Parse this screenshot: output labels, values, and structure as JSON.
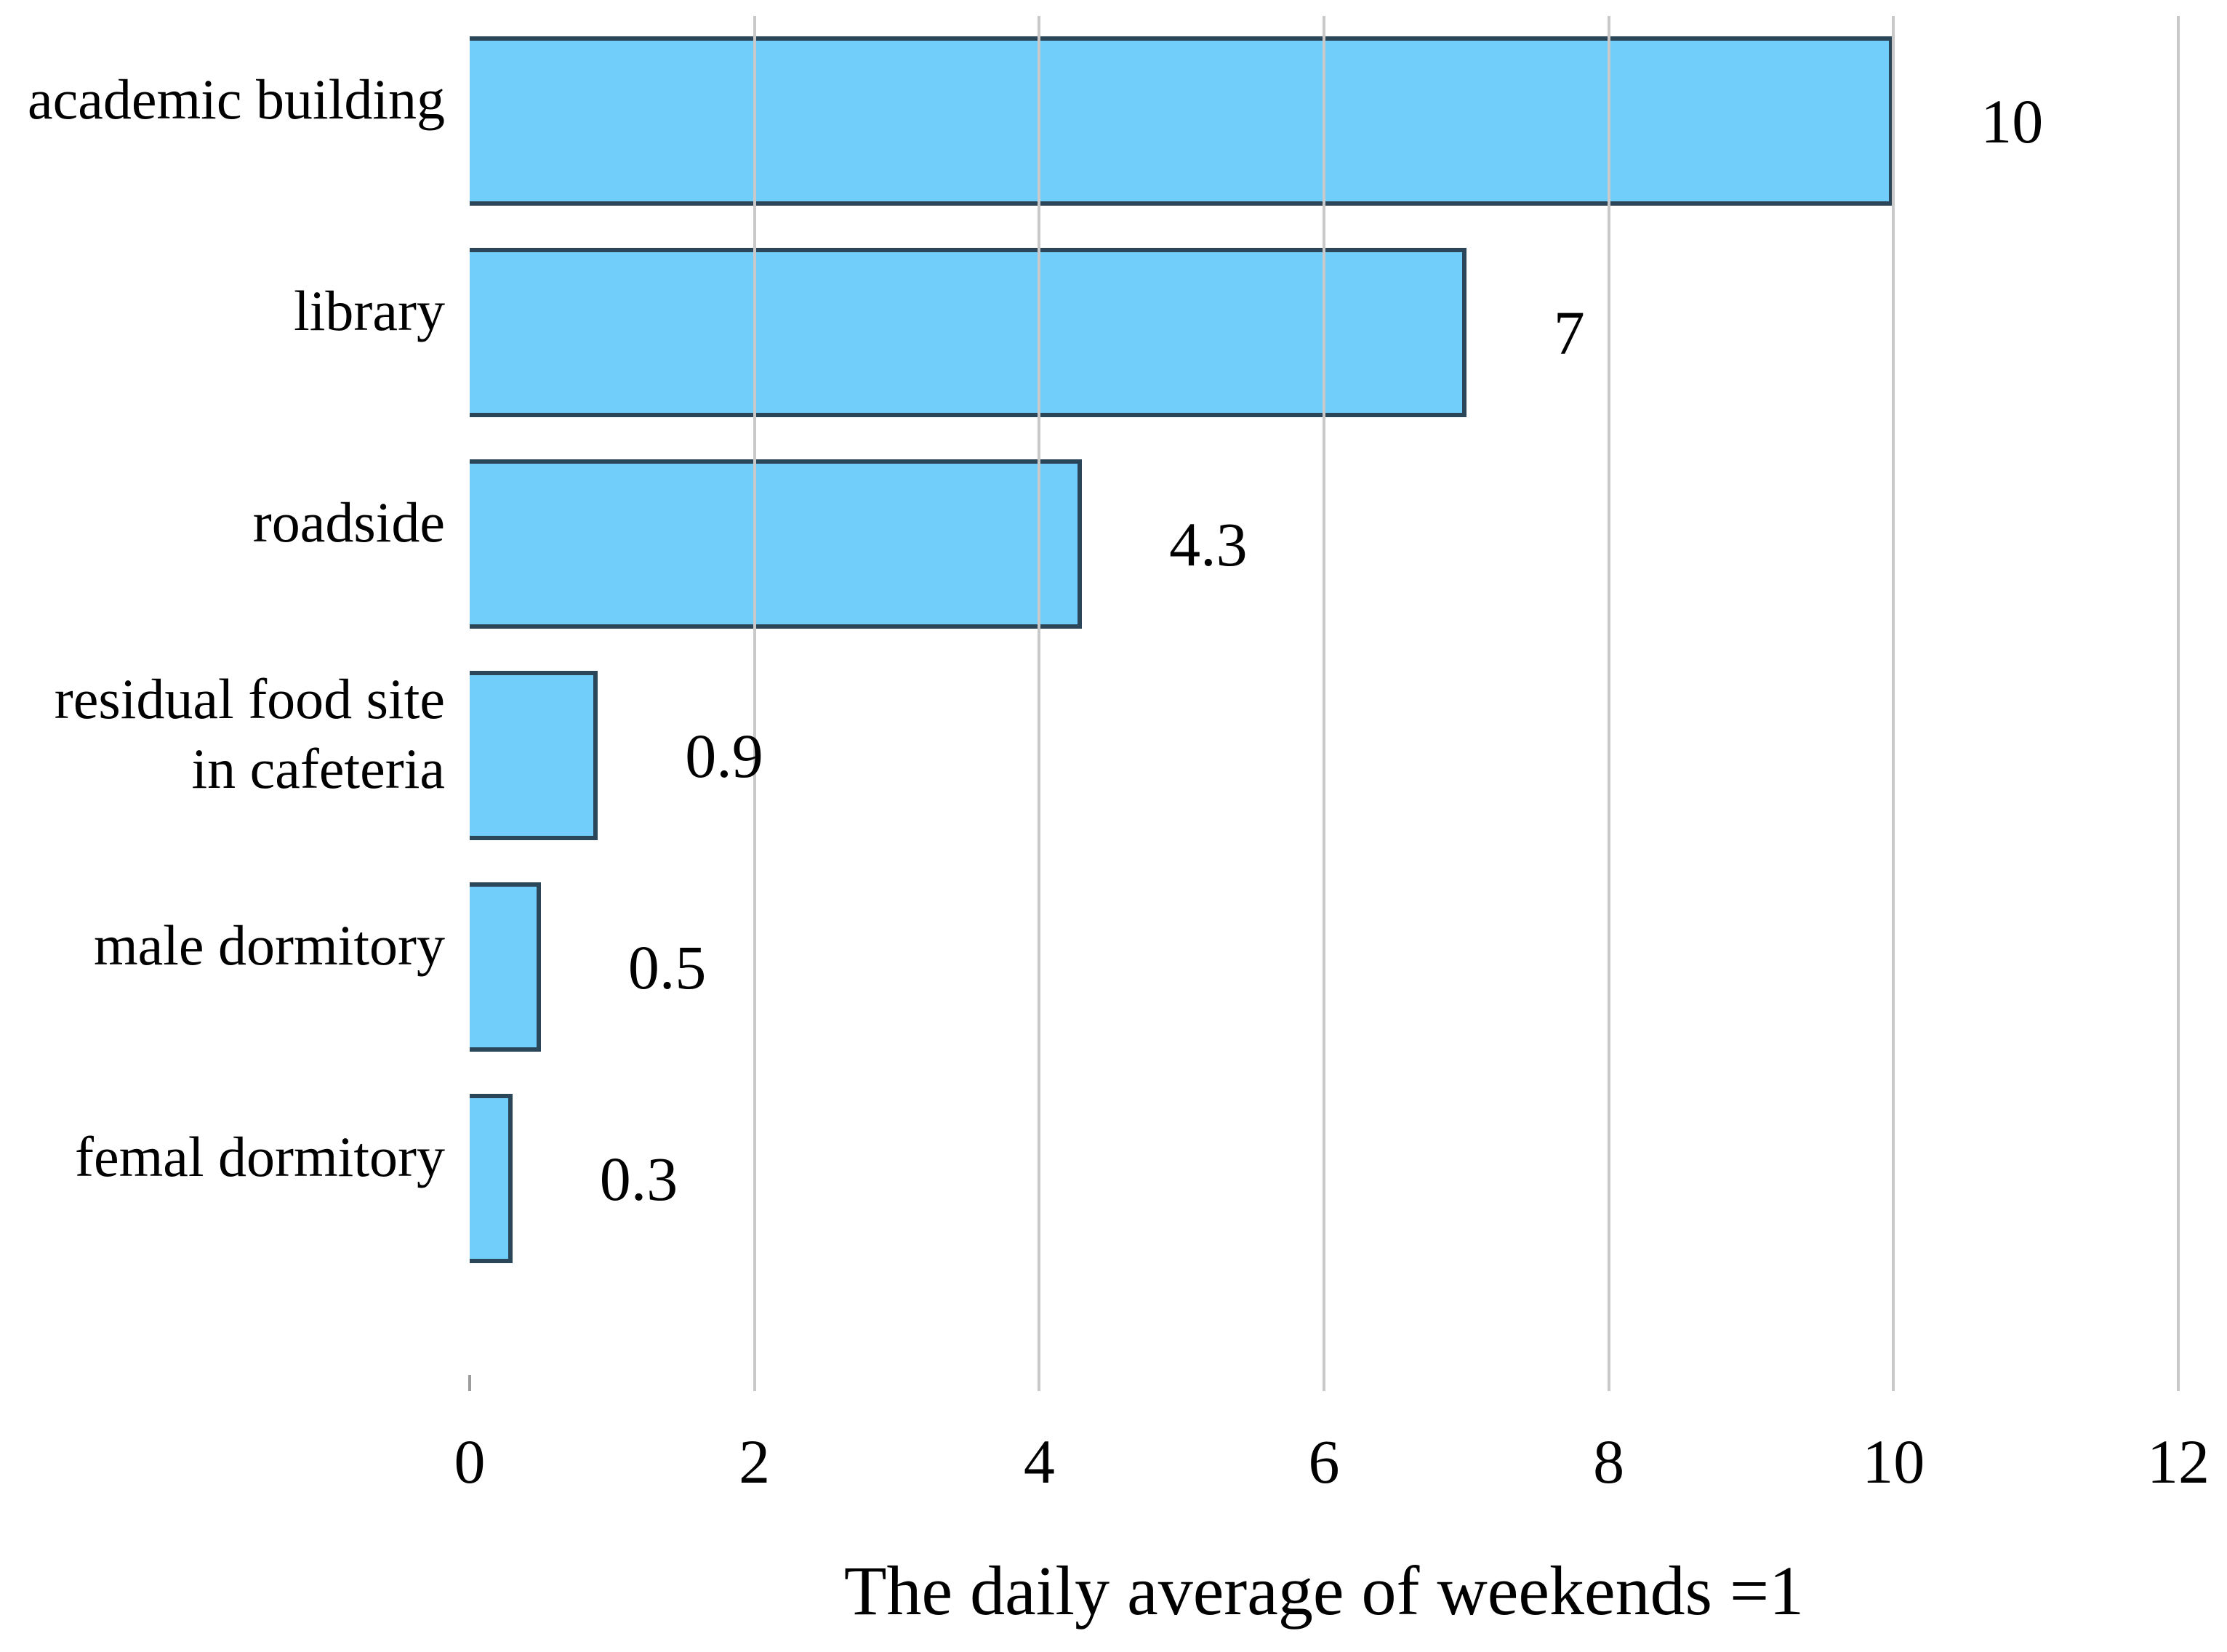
{
  "chart_data": {
    "type": "bar",
    "orientation": "horizontal",
    "title": "",
    "xlabel": "The daily average of weekends =1",
    "ylabel": "",
    "xlim": [
      0,
      12
    ],
    "xticks": [
      "0",
      "2",
      "4",
      "6",
      "8",
      "10",
      "12"
    ],
    "grid": true,
    "legend": false,
    "categories": [
      [
        "academic building"
      ],
      [
        "library"
      ],
      [
        "roadside"
      ],
      [
        "residual food site",
        "in cafeteria"
      ],
      [
        "male dormitory"
      ],
      [
        "femal dormitory"
      ]
    ],
    "values": [
      10,
      7,
      4.3,
      0.9,
      0.5,
      0.3
    ],
    "value_labels": [
      "10",
      "7",
      "4.3",
      "0.9",
      "0.5",
      "0.3"
    ],
    "colors": {
      "bar_fill": "#71CEFA",
      "bar_border": "#2B4559",
      "gridline": "#C9C9C9",
      "zero_tick": "#9C9C9C",
      "text": "#000000",
      "background": "#FFFFFF"
    }
  }
}
